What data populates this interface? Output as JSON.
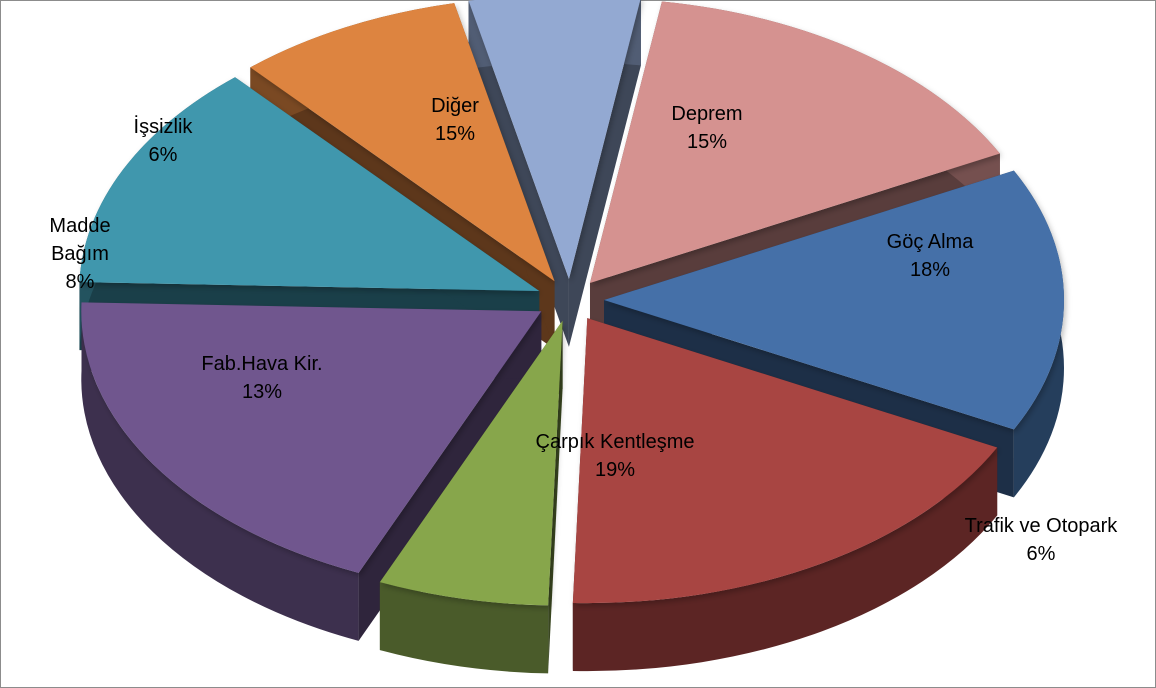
{
  "chart_data": {
    "type": "pie",
    "style": "3d-exploded",
    "title": "",
    "slices": [
      {
        "name": "Deprem",
        "label": "Deprem",
        "percent_label": "15%",
        "value": 15,
        "color": "#4470A8"
      },
      {
        "name": "Göç Alma",
        "label": "Göç Alma",
        "percent_label": "18%",
        "value": 18,
        "color": "#A84442"
      },
      {
        "name": "Trafik ve Otopark",
        "label": "Trafik ve Otopark",
        "percent_label": "6%",
        "value": 6,
        "color": "#87A64C"
      },
      {
        "name": "Çarpık Kentleşme",
        "label": "Çarpık Kentleşme",
        "percent_label": "19%",
        "value": 19,
        "color": "#6F578E"
      },
      {
        "name": "Fab.Hava Kir.",
        "label": "Fab.Hava Kir.",
        "percent_label": "13%",
        "value": 13,
        "color": "#3F97AD"
      },
      {
        "name": "Madde Bağım",
        "label": "Madde\nBağım",
        "percent_label": "8%",
        "value": 8,
        "color": "#DD8440"
      },
      {
        "name": "İşsizlik",
        "label": "İşsizlik",
        "percent_label": "6%",
        "value": 6,
        "color": "#93A9D2"
      },
      {
        "name": "Diğer",
        "label": "Diğer",
        "percent_label": "15%",
        "value": 15,
        "color": "#D59290"
      }
    ]
  }
}
